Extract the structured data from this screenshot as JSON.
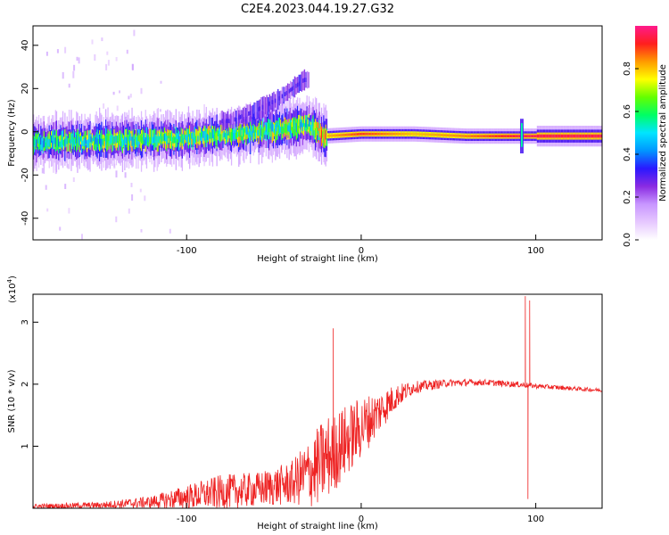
{
  "figure": {
    "title": "C2E4.2023.044.19.27.G32"
  },
  "chart_data": [
    {
      "type": "heatmap",
      "title": "C2E4.2023.044.19.27.G32",
      "xlabel": "Height of straight line (km)",
      "ylabel": "Frequency (Hz)",
      "xlim": [
        -188,
        138
      ],
      "ylim": [
        -50,
        49
      ],
      "x_ticks": [
        -100,
        0,
        100
      ],
      "y_ticks": [
        40,
        20,
        0,
        -20,
        -40
      ],
      "x_tick_labels": [
        "-100",
        "0",
        "100"
      ],
      "y_tick_labels": [
        "40",
        "20",
        "0",
        "-20",
        "-40"
      ],
      "colorbar": {
        "label": "Normalized spectral amplitude",
        "range": [
          0,
          1
        ],
        "ticks": [
          "0.0",
          "0.2",
          "0.4",
          "0.6",
          "0.8"
        ],
        "colors": [
          "#ffffff",
          "#e6c8ff",
          "#c896ff",
          "#8a2be2",
          "#2a18ff",
          "#0096ff",
          "#00e5ff",
          "#00ff64",
          "#64ff00",
          "#ffff00",
          "#ff9a00",
          "#ff1e1e",
          "#ff1a8c"
        ]
      },
      "ridge": [
        {
          "x": -188,
          "freq": -5,
          "amplitude": 0.5
        },
        {
          "x": -150,
          "freq": -4,
          "amplitude": 0.55
        },
        {
          "x": -100,
          "freq": -3,
          "amplitude": 0.6
        },
        {
          "x": -60,
          "freq": 0,
          "amplitude": 0.6
        },
        {
          "x": -30,
          "freq": 3,
          "amplitude": 0.55
        },
        {
          "x": -22,
          "freq": -2,
          "amplitude": 0.8
        },
        {
          "x": 0,
          "freq": -1,
          "amplitude": 0.9
        },
        {
          "x": 30,
          "freq": -1,
          "amplitude": 0.8
        },
        {
          "x": 60,
          "freq": -2,
          "amplitude": 0.85
        },
        {
          "x": 92,
          "freq": -2,
          "amplitude": 0.95
        },
        {
          "x": 138,
          "freq": -2,
          "amplitude": 0.95
        }
      ],
      "upper_branch": [
        {
          "x": -75,
          "freq": 5
        },
        {
          "x": -60,
          "freq": 10
        },
        {
          "x": -48,
          "freq": 15
        },
        {
          "x": -38,
          "freq": 21
        },
        {
          "x": -33,
          "freq": 24
        }
      ]
    },
    {
      "type": "line",
      "xlabel": "Height of straight line (km)",
      "ylabel": "SNR (10 * v/v)",
      "y_multiplier": "(x10",
      "y_multiplier_exp": "4",
      "y_multiplier_close": ")",
      "xlim": [
        -188,
        138
      ],
      "ylim": [
        0,
        3.45
      ],
      "x_ticks": [
        -100,
        0,
        100
      ],
      "y_ticks": [
        1,
        2,
        3
      ],
      "x_tick_labels": [
        "-100",
        "0",
        "100"
      ],
      "y_tick_labels": [
        "1",
        "2",
        "3"
      ],
      "color": "#ee2222",
      "envelope": [
        {
          "x": -188,
          "mean": 0.03,
          "amp": 0.04
        },
        {
          "x": -150,
          "mean": 0.05,
          "amp": 0.05
        },
        {
          "x": -120,
          "mean": 0.1,
          "amp": 0.1
        },
        {
          "x": -100,
          "mean": 0.18,
          "amp": 0.2
        },
        {
          "x": -80,
          "mean": 0.26,
          "amp": 0.28
        },
        {
          "x": -60,
          "mean": 0.3,
          "amp": 0.28
        },
        {
          "x": -40,
          "mean": 0.4,
          "amp": 0.35
        },
        {
          "x": -28,
          "mean": 0.6,
          "amp": 0.6
        },
        {
          "x": -20,
          "mean": 0.8,
          "amp": 0.7
        },
        {
          "x": -10,
          "mean": 1.05,
          "amp": 0.6
        },
        {
          "x": 0,
          "mean": 1.3,
          "amp": 0.5
        },
        {
          "x": 10,
          "mean": 1.55,
          "amp": 0.35
        },
        {
          "x": 20,
          "mean": 1.8,
          "amp": 0.2
        },
        {
          "x": 30,
          "mean": 1.95,
          "amp": 0.1
        },
        {
          "x": 50,
          "mean": 2.02,
          "amp": 0.06
        },
        {
          "x": 70,
          "mean": 2.03,
          "amp": 0.05
        },
        {
          "x": 88,
          "mean": 2.0,
          "amp": 0.05
        },
        {
          "x": 100,
          "mean": 1.97,
          "amp": 0.04
        },
        {
          "x": 138,
          "mean": 1.9,
          "amp": 0.03
        }
      ],
      "spikes": [
        {
          "x": -16,
          "y": 2.9
        },
        {
          "x": 94,
          "y": 3.42
        },
        {
          "x": 95.5,
          "y": 0.15
        },
        {
          "x": 96.5,
          "y": 3.35
        }
      ]
    }
  ]
}
